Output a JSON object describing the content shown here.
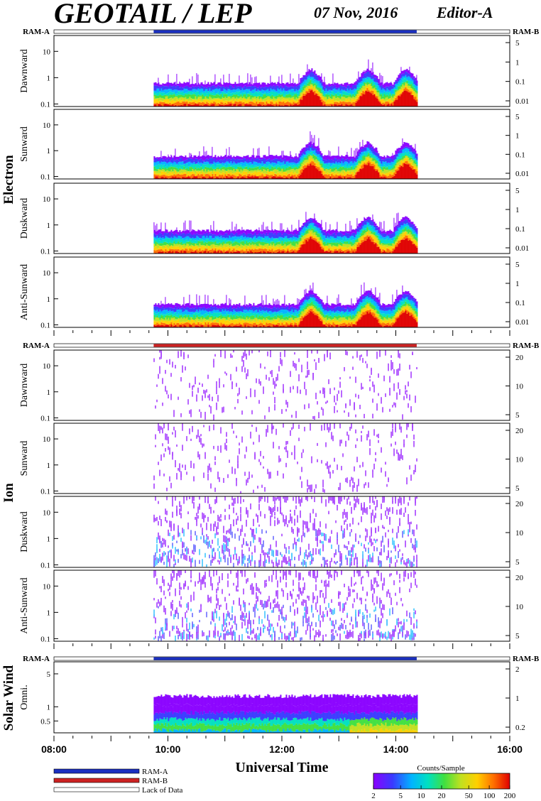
{
  "header": {
    "title": "GEOTAIL / LEP",
    "date": "07 Nov, 2016",
    "editor": "Editor-A"
  },
  "colors": {
    "ram_a": "#1a2fc0",
    "ram_b": "#cc2222",
    "lack": "#ffffff",
    "spectrum": [
      "#8a00ff",
      "#3a3aff",
      "#00b4ff",
      "#00e0c0",
      "#40e040",
      "#c0e020",
      "#ffd000",
      "#ff7000",
      "#e00000"
    ]
  },
  "chart_data": [
    {
      "type": "heatmap",
      "group": "Electron",
      "ylabel": "Dawnward",
      "left_label": "RAM-A",
      "right_label": "RAM-B",
      "mode_bar": "ram-a",
      "yticks": [
        "10",
        "1",
        "0.1"
      ],
      "ytick_values": [
        10,
        1,
        0.1
      ],
      "ylim": [
        0.08,
        40
      ],
      "right_ticks": [
        "5",
        "1",
        "0.1",
        "0.01"
      ],
      "data_start_ut": "09:45",
      "data_end_ut": "14:22",
      "enhancements_ut": [
        "12:30",
        "13:30",
        "14:10"
      ]
    },
    {
      "type": "heatmap",
      "group": "Electron",
      "ylabel": "Sunward",
      "yticks": [
        "10",
        "1",
        "0.1"
      ],
      "ytick_values": [
        10,
        1,
        0.1
      ],
      "ylim": [
        0.08,
        40
      ],
      "right_ticks": [
        "5",
        "1",
        "0.1",
        "0.01"
      ],
      "data_start_ut": "09:45",
      "data_end_ut": "14:22",
      "enhancements_ut": [
        "12:30",
        "13:30",
        "14:10"
      ]
    },
    {
      "type": "heatmap",
      "group": "Electron",
      "ylabel": "Duskward",
      "yticks": [
        "10",
        "1",
        "0.1"
      ],
      "ytick_values": [
        10,
        1,
        0.1
      ],
      "ylim": [
        0.08,
        40
      ],
      "right_ticks": [
        "5",
        "1",
        "0.1",
        "0.01"
      ],
      "data_start_ut": "09:45",
      "data_end_ut": "14:22",
      "enhancements_ut": [
        "12:30",
        "13:30",
        "14:10"
      ]
    },
    {
      "type": "heatmap",
      "group": "Electron",
      "ylabel": "Anti-Sunward",
      "yticks": [
        "10",
        "1",
        "0.1"
      ],
      "ytick_values": [
        10,
        1,
        0.1
      ],
      "ylim": [
        0.08,
        40
      ],
      "right_ticks": [
        "5",
        "1",
        "0.1",
        "0.01"
      ],
      "data_start_ut": "09:45",
      "data_end_ut": "14:22",
      "enhancements_ut": [
        "12:30",
        "13:30",
        "14:10"
      ]
    },
    {
      "type": "heatmap",
      "group": "Ion",
      "ylabel": "Dawnward",
      "left_label": "RAM-A",
      "right_label": "RAM-B",
      "mode_bar": "ram-b",
      "yticks": [
        "10",
        "1",
        "0.1"
      ],
      "ytick_values": [
        10,
        1,
        0.1
      ],
      "ylim": [
        0.08,
        40
      ],
      "right_ticks": [
        "20",
        "10",
        "5"
      ],
      "data_start_ut": "09:45",
      "data_end_ut": "14:22"
    },
    {
      "type": "heatmap",
      "group": "Ion",
      "ylabel": "Sunward",
      "yticks": [
        "10",
        "1",
        "0.1"
      ],
      "ytick_values": [
        10,
        1,
        0.1
      ],
      "ylim": [
        0.08,
        40
      ],
      "right_ticks": [
        "20",
        "10",
        "5"
      ],
      "data_start_ut": "09:45",
      "data_end_ut": "14:22"
    },
    {
      "type": "heatmap",
      "group": "Ion",
      "ylabel": "Duskward",
      "yticks": [
        "10",
        "1",
        "0.1"
      ],
      "ytick_values": [
        10,
        1,
        0.1
      ],
      "ylim": [
        0.08,
        40
      ],
      "right_ticks": [
        "20",
        "10",
        "5"
      ],
      "data_start_ut": "09:45",
      "data_end_ut": "14:22"
    },
    {
      "type": "heatmap",
      "group": "Ion",
      "ylabel": "Anti-Sunward",
      "yticks": [
        "10",
        "1",
        "0.1"
      ],
      "ytick_values": [
        10,
        1,
        0.1
      ],
      "ylim": [
        0.08,
        40
      ],
      "right_ticks": [
        "20",
        "10",
        "5"
      ],
      "data_start_ut": "09:45",
      "data_end_ut": "14:22"
    },
    {
      "type": "heatmap",
      "group": "Solar Wind",
      "ylabel": "Omni.",
      "left_label": "RAM-A",
      "right_label": "RAM-B",
      "mode_bar": "ram-a",
      "yticks": [
        "5",
        "1",
        "0.5"
      ],
      "ytick_values": [
        5,
        1,
        0.5
      ],
      "ylim": [
        0.28,
        9
      ],
      "right_ticks": [
        "2",
        "1",
        "0.2"
      ],
      "data_start_ut": "09:45",
      "data_end_ut": "14:22"
    }
  ],
  "xaxis": {
    "title": "Universal Time",
    "ticks": [
      "08:00",
      "10:00",
      "12:00",
      "14:00",
      "16:00"
    ],
    "range_ut": [
      "08:00",
      "16:00"
    ]
  },
  "legend": {
    "items": [
      "RAM-A",
      "RAM-B",
      "Lack of Data"
    ],
    "colorbar_title": "Counts/Sample",
    "colorbar_ticks": [
      "2",
      "5",
      "10",
      "20",
      "50",
      "100",
      "200"
    ],
    "colorbar_range": [
      2,
      200
    ]
  },
  "groups": [
    "Electron",
    "Ion",
    "Solar Wind"
  ]
}
